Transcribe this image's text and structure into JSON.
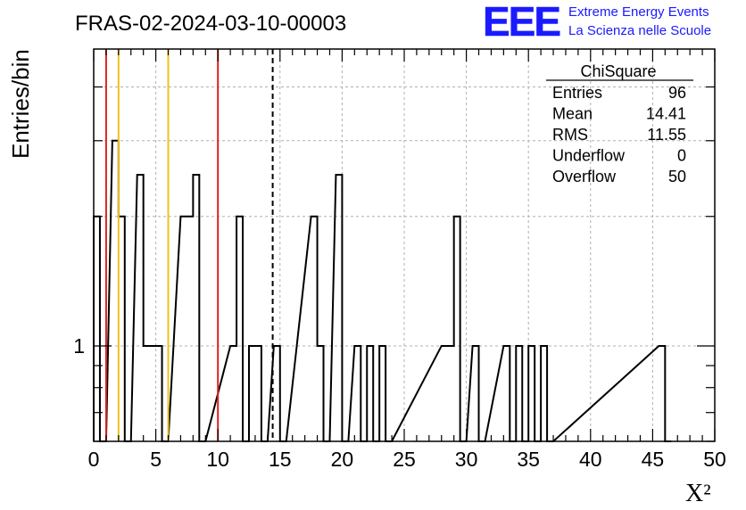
{
  "header": {
    "run_title": "FRAS-02-2024-03-10-00003",
    "logo_text": "EEE",
    "project_line1": "Extreme Energy Events",
    "project_line2": "La Scienza nelle Scuole"
  },
  "stats_box": {
    "title": "ChiSquare",
    "rows": [
      {
        "label": "Entries",
        "value": "96"
      },
      {
        "label": "Mean",
        "value": "14.41"
      },
      {
        "label": "RMS",
        "value": "11.55"
      },
      {
        "label": "Underflow",
        "value": "0"
      },
      {
        "label": "Overflow",
        "value": "50"
      }
    ]
  },
  "colors": {
    "histogram": "#000000",
    "red_line": "#e02020",
    "yellow_line": "#f0c020",
    "logo": "#1a1aff",
    "grid": "#b0b0b0"
  },
  "chart_data": {
    "type": "bar",
    "histogram_style": "step",
    "xlabel": "X²",
    "ylabel": "Entries/bin",
    "xlim": [
      0,
      50
    ],
    "x_ticks": [
      "0",
      "5",
      "10",
      "15",
      "20",
      "25",
      "30",
      "35",
      "40",
      "45",
      "50"
    ],
    "y_scale": "log",
    "ylim": [
      0.6,
      4.9
    ],
    "y_tick_labels": [
      {
        "value": 1,
        "label": "1"
      }
    ],
    "grid": true,
    "bin_width": 0.5,
    "bins": [
      {
        "x": 0.0,
        "y": 2
      },
      {
        "x": 0.5,
        "y": 0
      },
      {
        "x": 1.5,
        "y": 3
      },
      {
        "x": 2.0,
        "y": 2
      },
      {
        "x": 2.5,
        "y": 0
      },
      {
        "x": 3.5,
        "y": 2.5
      },
      {
        "x": 4.0,
        "y": 1
      },
      {
        "x": 4.5,
        "y": 1
      },
      {
        "x": 5.0,
        "y": 1
      },
      {
        "x": 5.5,
        "y": 0
      },
      {
        "x": 7.0,
        "y": 2
      },
      {
        "x": 7.5,
        "y": 2
      },
      {
        "x": 8.0,
        "y": 2.5
      },
      {
        "x": 8.5,
        "y": 0
      },
      {
        "x": 11.0,
        "y": 1
      },
      {
        "x": 11.5,
        "y": 2
      },
      {
        "x": 12.0,
        "y": 0
      },
      {
        "x": 12.5,
        "y": 1
      },
      {
        "x": 13.0,
        "y": 1
      },
      {
        "x": 13.5,
        "y": 0
      },
      {
        "x": 14.5,
        "y": 1
      },
      {
        "x": 15.0,
        "y": 0
      },
      {
        "x": 17.5,
        "y": 2
      },
      {
        "x": 18.0,
        "y": 1
      },
      {
        "x": 18.5,
        "y": 0
      },
      {
        "x": 19.5,
        "y": 2.5
      },
      {
        "x": 20.0,
        "y": 0
      },
      {
        "x": 21.0,
        "y": 1
      },
      {
        "x": 21.5,
        "y": 0
      },
      {
        "x": 22.0,
        "y": 1
      },
      {
        "x": 22.5,
        "y": 0
      },
      {
        "x": 23.0,
        "y": 1
      },
      {
        "x": 23.5,
        "y": 0
      },
      {
        "x": 28.0,
        "y": 1
      },
      {
        "x": 28.5,
        "y": 1
      },
      {
        "x": 29.0,
        "y": 2
      },
      {
        "x": 29.5,
        "y": 0
      },
      {
        "x": 30.5,
        "y": 1
      },
      {
        "x": 31.0,
        "y": 0
      },
      {
        "x": 33.0,
        "y": 1
      },
      {
        "x": 33.5,
        "y": 0
      },
      {
        "x": 34.0,
        "y": 1
      },
      {
        "x": 34.5,
        "y": 0
      },
      {
        "x": 35.0,
        "y": 1
      },
      {
        "x": 35.5,
        "y": 0
      },
      {
        "x": 36.0,
        "y": 1
      },
      {
        "x": 36.5,
        "y": 0
      },
      {
        "x": 45.5,
        "y": 1
      },
      {
        "x": 46.0,
        "y": 0
      }
    ],
    "reference_lines": [
      {
        "x": 1,
        "color": "red"
      },
      {
        "x": 2,
        "color": "yellow"
      },
      {
        "x": 6,
        "color": "yellow"
      },
      {
        "x": 10,
        "color": "red"
      },
      {
        "x": 14.41,
        "color": "black",
        "style": "dashed"
      }
    ]
  }
}
